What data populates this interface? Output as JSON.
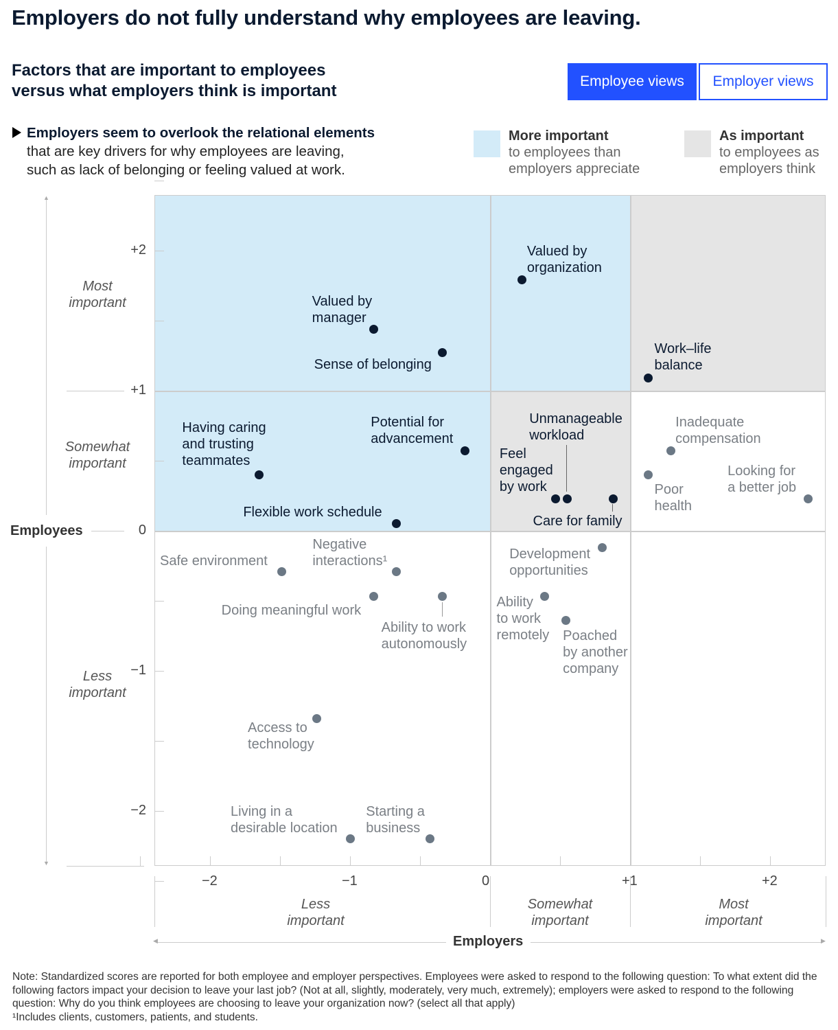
{
  "title": "Employers do not fully understand why employees are leaving.",
  "subtitle": "Factors that are important to employees\nversus what employers think is important",
  "toggle": {
    "employee_views": "Employee views",
    "employer_views": "Employer views",
    "active": "Employee views"
  },
  "callout": {
    "bold": "Employers seem to overlook the relational elements",
    "rest": "that are key drivers for why employees are leaving,\nsuch as lack of belonging or feeling valued at work."
  },
  "legend": [
    {
      "title": "More important",
      "text": "to employees than\nemployers appreciate",
      "color": "#d3ebf8"
    },
    {
      "title": "As important",
      "text": "to employees as\nemployers think",
      "color": "#e5e5e5"
    }
  ],
  "colors": {
    "accent": "#2251ff",
    "dot_dark": "#0b1a30",
    "dot_gray": "#6b7885",
    "blue_region": "#d3ebf8",
    "gray_region": "#e5e5e5"
  },
  "chart_data": {
    "type": "scatter",
    "xlabel": "Employers",
    "ylabel": "Employees",
    "xlim": [
      -2.4,
      2.4
    ],
    "ylim": [
      -2.4,
      2.4
    ],
    "x_ticks": [
      "−2",
      "−1",
      "0",
      "+1",
      "+2"
    ],
    "y_ticks": [
      "+2",
      "+1",
      "0",
      "−1",
      "−2"
    ],
    "x_categories": [
      "Less\nimportant",
      "Somewhat\nimportant",
      "Most\nimportant"
    ],
    "y_categories": [
      "Most\nimportant",
      "Somewhat\nimportant",
      "Less\nimportant"
    ],
    "points": [
      {
        "label": "Valued by\norganization",
        "x": 0.23,
        "y": 1.79
      },
      {
        "label": "Valued by\nmanager",
        "x": -0.83,
        "y": 1.44
      },
      {
        "label": "Sense of belonging",
        "x": -0.34,
        "y": 1.27
      },
      {
        "label": "Work–life\nbalance",
        "x": 1.13,
        "y": 1.09
      },
      {
        "label": "Potential for\nadvancement",
        "x": -0.18,
        "y": 0.57
      },
      {
        "label": "Having caring\nand trusting\nteammates",
        "x": -1.65,
        "y": 0.4
      },
      {
        "label": "Flexible work schedule",
        "x": -0.67,
        "y": 0.05
      },
      {
        "label": "Feel\nengaged\nby work",
        "x": 0.47,
        "y": 0.23
      },
      {
        "label": "Unmanageable\nworkload",
        "x": 0.55,
        "y": 0.23
      },
      {
        "label": "Care for family",
        "x": 0.88,
        "y": 0.23
      },
      {
        "label": "Inadequate\ncompensation",
        "x": 1.29,
        "y": 0.57
      },
      {
        "label": "Poor\nhealth",
        "x": 1.13,
        "y": 0.4
      },
      {
        "label": "Looking for\na better job",
        "x": 2.27,
        "y": 0.23
      },
      {
        "label": "Safe environment",
        "x": -1.49,
        "y": -0.29
      },
      {
        "label": "Negative\ninteractions¹",
        "x": -0.67,
        "y": -0.29
      },
      {
        "label": "Doing meaningful work",
        "x": -0.83,
        "y": -0.47
      },
      {
        "label": "Ability to work\nautonomously",
        "x": -0.34,
        "y": -0.47
      },
      {
        "label": "Development\nopportunities",
        "x": 0.8,
        "y": -0.12
      },
      {
        "label": "Ability\nto work\nremotely",
        "x": 0.39,
        "y": -0.47
      },
      {
        "label": "Poached\nby another\ncompany",
        "x": 0.54,
        "y": -0.64
      },
      {
        "label": "Access to\ntechnology",
        "x": -1.24,
        "y": -1.34
      },
      {
        "label": "Living in a\ndesirable location",
        "x": -1.0,
        "y": -2.2
      },
      {
        "label": "Starting a\nbusiness",
        "x": -0.43,
        "y": -2.2
      }
    ]
  },
  "note": "Note: Standardized scores are reported for both employee and employer perspectives. Employees were asked to respond to the following question: To what extent did the following factors impact your decision to leave your last job? (Not at all, slightly, moderately, very much, extremely); employers were asked to respond to the following question: Why do you think employees are choosing to leave your organization now? (select all that apply)",
  "footnote": "¹Includes clients, customers, patients, and students."
}
